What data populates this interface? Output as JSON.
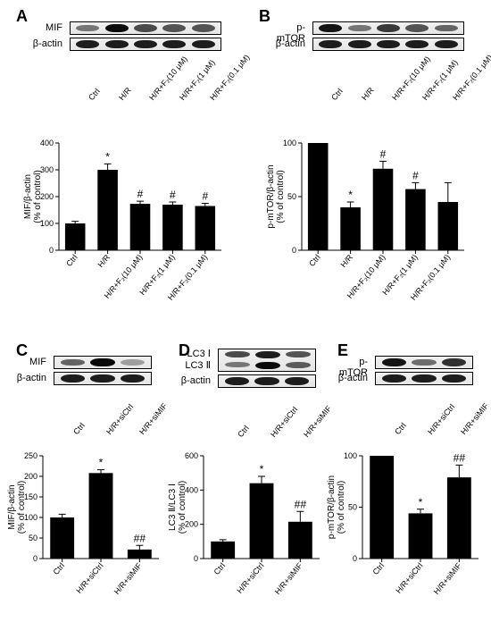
{
  "figure": {
    "panels": {
      "A": {
        "letter": "A",
        "blots": [
          {
            "label": "MIF",
            "bands": [
              0.35,
              0.95,
              0.6,
              0.55,
              0.55
            ]
          },
          {
            "label": "β-actin",
            "bands": [
              0.85,
              0.85,
              0.85,
              0.85,
              0.85
            ]
          }
        ],
        "lanes": [
          "Ctrl",
          "H/R",
          "H/R+F₂(10 μM)",
          "H/R+F₂(1 μM)",
          "H/R+F₂(0.1 μM)"
        ],
        "chart": {
          "ylabel": "MIF/β-actin",
          "ysub": "(% of control)",
          "ylim": [
            0,
            400
          ],
          "ytick_step": 100,
          "values": [
            100,
            300,
            173,
            170,
            165
          ],
          "errors": [
            8,
            22,
            10,
            10,
            10
          ],
          "sig": [
            "",
            "*",
            "#",
            "#",
            "#"
          ],
          "bar_color": "#000000"
        }
      },
      "B": {
        "letter": "B",
        "blots": [
          {
            "label": "p-mTOR",
            "bands": [
              0.9,
              0.35,
              0.7,
              0.55,
              0.45
            ]
          },
          {
            "label": "β-actin",
            "bands": [
              0.85,
              0.85,
              0.85,
              0.85,
              0.85
            ]
          }
        ],
        "lanes": [
          "Ctrl",
          "H/R",
          "H/R+F₂(10 μM)",
          "H/R+F₂(1 μM)",
          "H/R+F₂(0.1 μM)"
        ],
        "chart": {
          "ylabel": "p-mTOR/β-actin",
          "ysub": "(% of control)",
          "ylim": [
            0,
            100
          ],
          "ytick_step": 50,
          "values": [
            100,
            40,
            76,
            57,
            45
          ],
          "errors": [
            0,
            5,
            7,
            6,
            18
          ],
          "sig": [
            "",
            "*",
            "#",
            "#",
            ""
          ],
          "bar_color": "#000000"
        }
      },
      "C": {
        "letter": "C",
        "blots": [
          {
            "label": "MIF",
            "bands": [
              0.45,
              0.95,
              0.1
            ]
          },
          {
            "label": "β-actin",
            "bands": [
              0.85,
              0.85,
              0.85
            ]
          }
        ],
        "lanes": [
          "Ctrl",
          "H/R+siCtrl",
          "H/R+siMIF"
        ],
        "chart": {
          "ylabel": "MIF/β-actin",
          "ysub": "(% of control)",
          "ylim": [
            0,
            250
          ],
          "ytick_step": 50,
          "values": [
            100,
            208,
            22
          ],
          "errors": [
            8,
            8,
            10
          ],
          "sig": [
            "",
            "*",
            "##"
          ],
          "bar_color": "#000000"
        }
      },
      "D": {
        "letter": "D",
        "blots": [
          {
            "label": "LC3 Ⅰ",
            "bands": [
              0.6,
              0.85,
              0.55
            ],
            "thin": true
          },
          {
            "label": "LC3 Ⅱ",
            "bands": [
              0.35,
              0.95,
              0.5
            ],
            "thin": true
          },
          {
            "label": "β-actin",
            "bands": [
              0.85,
              0.85,
              0.85
            ]
          }
        ],
        "lanes": [
          "Ctrl",
          "H/R+siCtrl",
          "H/R+siMIF"
        ],
        "chart": {
          "ylabel": "LC3 Ⅱ/LC3 Ⅰ",
          "ysub": "(% of control)",
          "ylim": [
            0,
            600
          ],
          "ytick_step": 200,
          "values": [
            100,
            440,
            215
          ],
          "errors": [
            10,
            40,
            60
          ],
          "sig": [
            "",
            "*",
            "##"
          ],
          "bar_color": "#000000"
        }
      },
      "E": {
        "letter": "E",
        "blots": [
          {
            "label": "p-mTOR",
            "bands": [
              0.9,
              0.4,
              0.75
            ]
          },
          {
            "label": "β-actin",
            "bands": [
              0.85,
              0.85,
              0.85
            ]
          }
        ],
        "lanes": [
          "Ctrl",
          "H/R+siCtrl",
          "H/R+siMIF"
        ],
        "chart": {
          "ylabel": "p-mTOR/β-actin",
          "ysub": "(% of control)",
          "ylim": [
            0,
            100
          ],
          "ytick_step": 50,
          "values": [
            100,
            44,
            79
          ],
          "errors": [
            0,
            4,
            12
          ],
          "sig": [
            "",
            "*",
            "##"
          ],
          "bar_color": "#000000"
        }
      }
    },
    "layout": {
      "colors": {
        "background": "#ffffff",
        "bars": "#000000",
        "bands": "#1a1a1a",
        "axes": "#000000",
        "text": "#000000"
      },
      "fonts": {
        "panel_label": 18,
        "blot_label": 11,
        "tick": 9,
        "axis_title": 10,
        "lane_label": 9,
        "sig": 12
      }
    }
  }
}
